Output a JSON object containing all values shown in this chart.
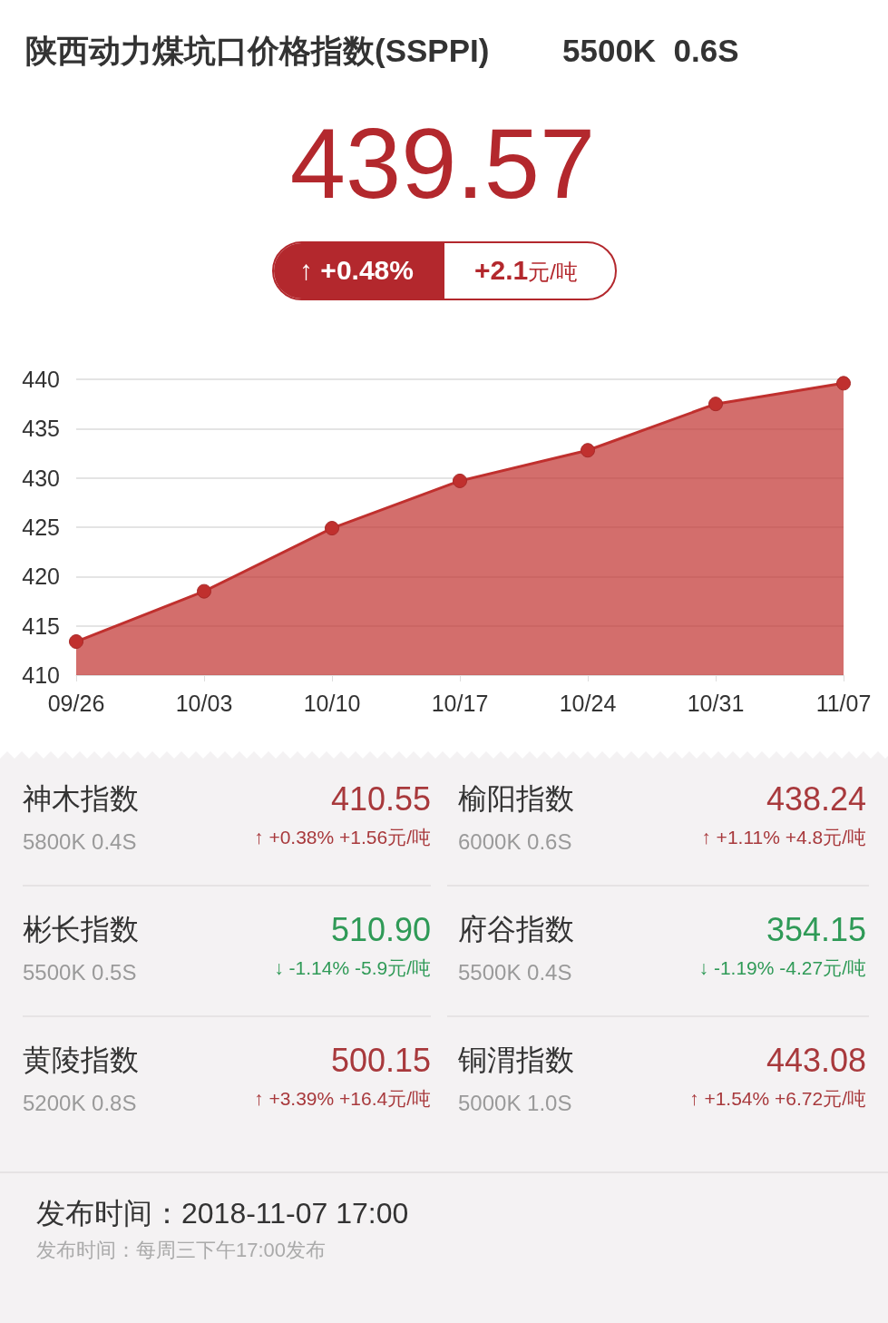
{
  "chart_data": [
    {
      "type": "area",
      "title": "陕西动力煤坑口价格指数(SSPPI)",
      "subtitle": "5500K  0.6S",
      "annotations": [
        "439.57",
        "↑ +0.48%",
        "+2.1元/吨"
      ],
      "categories": [
        "09/26",
        "10/03",
        "10/10",
        "10/17",
        "10/24",
        "10/31",
        "11/07"
      ],
      "series": [
        {
          "color": "#c0302e",
          "values": [
            413.4,
            418.5,
            424.9,
            429.7,
            432.8,
            437.5,
            439.6
          ]
        }
      ],
      "ylim": [
        410,
        440
      ],
      "yticks": [
        410,
        415,
        420,
        425,
        430,
        435,
        440
      ],
      "grid": "y",
      "marker": "circle"
    },
    {
      "type": "other",
      "annotations": [
        "神木指数",
        "5800K 0.4S",
        "410.55",
        "↑ +0.38% +1.56元/吨",
        "榆阳指数",
        "6000K 0.6S",
        "438.24",
        "↑ +1.11% +4.8元/吨",
        "彬长指数",
        "5500K 0.5S",
        "510.90",
        "↓ -1.14% -5.9元/吨",
        "府谷指数",
        "5500K 0.4S",
        "354.15",
        "↓ -1.19% -4.27元/吨",
        "黄陵指数",
        "5200K 0.8S",
        "500.15",
        "↑ +3.39% +16.4元/吨",
        "铜渭指数",
        "5000K 1.0S",
        "443.08",
        "↑ +1.54% +6.72元/吨",
        "发布时间：2018-11-07 17:00",
        "发布时间：每周三下午17:00发布"
      ],
      "colors": [
        "#a8393c",
        "#a8393c",
        "#2f9a57",
        "#2f9a57",
        "#a8393c",
        "#a8393c"
      ]
    }
  ]
}
